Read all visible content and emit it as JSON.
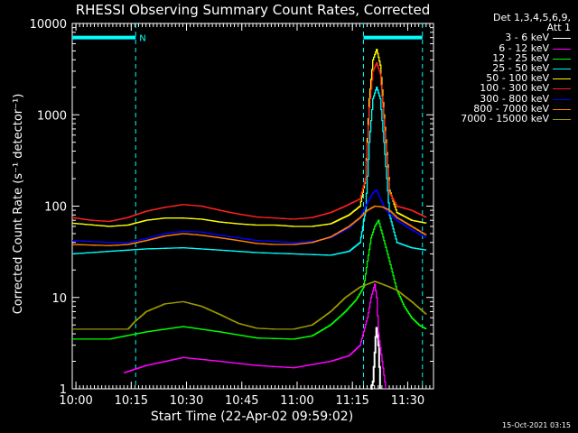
{
  "chart_data": {
    "type": "line",
    "title": "RHESSI Observing Summary Count Rates, Corrected",
    "xlabel": "Start Time (22-Apr-02 09:59:02)",
    "ylabel": "Corrected Count Rate (s⁻¹ detector⁻¹)",
    "y_scale": "log",
    "ylim": [
      1,
      10000
    ],
    "xlim_minutes": [
      0,
      98
    ],
    "y_ticks": [
      "1",
      "10",
      "100",
      "1000",
      "10000"
    ],
    "x_ticks": [
      {
        "label": "10:00",
        "t": 1
      },
      {
        "label": "10:15",
        "t": 16
      },
      {
        "label": "10:30",
        "t": 31
      },
      {
        "label": "10:45",
        "t": 46
      },
      {
        "label": "11:00",
        "t": 61
      },
      {
        "label": "11:15",
        "t": 76
      },
      {
        "label": "11:30",
        "t": 91
      }
    ],
    "legend_header": [
      "Det 1,3,4,5,6,9,",
      "Att 1"
    ],
    "attenuator_bars": [
      {
        "start": 0,
        "end": 17.2,
        "value": 7000,
        "label": "N"
      },
      {
        "start": 79,
        "end": 95,
        "value": 7000,
        "label": ""
      }
    ],
    "vertical_markers": [
      17.2,
      79,
      95
    ],
    "series": [
      {
        "name": "3 - 6 keV",
        "color": "#ffffff",
        "sparse": true,
        "x": [
          81,
          81.5,
          82,
          82.3,
          82.6,
          83,
          83.5
        ],
        "y": [
          1,
          1.2,
          2.5,
          4,
          5,
          3,
          1
        ]
      },
      {
        "name": "6 - 12 keV",
        "color": "#ff00ff",
        "sparse": false,
        "x": [
          14,
          20,
          30,
          40,
          50,
          60,
          70,
          75,
          78,
          80,
          81,
          82,
          82.5,
          83,
          84,
          85
        ],
        "y": [
          1.5,
          1.8,
          2.2,
          2.0,
          1.8,
          1.7,
          2.0,
          2.3,
          3,
          6,
          10,
          14,
          10,
          4,
          2,
          1
        ]
      },
      {
        "name": "12 - 25 keV",
        "color": "#00ff00",
        "sparse": false,
        "x": [
          0,
          10,
          20,
          30,
          40,
          50,
          60,
          65,
          70,
          74,
          77,
          79,
          80,
          81,
          82,
          83,
          84,
          86,
          88,
          90,
          92,
          94,
          96
        ],
        "y": [
          3.5,
          3.5,
          4.2,
          4.8,
          4.2,
          3.6,
          3.5,
          3.8,
          5,
          7,
          9.5,
          13,
          25,
          45,
          60,
          70,
          50,
          25,
          12,
          8,
          6,
          5,
          4.5
        ]
      },
      {
        "name": "25 - 50 keV",
        "color": "#00ffff",
        "sparse": false,
        "x": [
          0,
          10,
          15,
          20,
          30,
          40,
          50,
          60,
          70,
          75,
          78,
          79.5,
          80.5,
          81.5,
          82.5,
          83.5,
          84.5,
          86,
          88,
          92,
          96
        ],
        "y": [
          30,
          32,
          33,
          34,
          35,
          33,
          31,
          30,
          29,
          32,
          40,
          90,
          500,
          1500,
          2000,
          1500,
          500,
          80,
          40,
          35,
          33
        ]
      },
      {
        "name": "50 - 100 keV",
        "color": "#ffff00",
        "sparse": false,
        "x": [
          0,
          10,
          15,
          20,
          25,
          30,
          35,
          40,
          45,
          50,
          55,
          60,
          65,
          70,
          75,
          78,
          79.5,
          80.5,
          81.5,
          82.5,
          83.5,
          84.5,
          86,
          88,
          92,
          96
        ],
        "y": [
          65,
          60,
          62,
          70,
          74,
          74,
          72,
          67,
          64,
          62,
          62,
          60,
          60,
          64,
          80,
          100,
          200,
          1500,
          4000,
          5200,
          3500,
          1000,
          150,
          85,
          70,
          65
        ]
      },
      {
        "name": "100 - 300 keV",
        "color": "#ff2020",
        "sparse": false,
        "x": [
          0,
          5,
          10,
          15,
          20,
          25,
          30,
          35,
          40,
          45,
          50,
          55,
          60,
          65,
          70,
          74,
          78,
          79.5,
          80.5,
          81.5,
          82.5,
          83.5,
          84.5,
          86,
          88,
          92,
          96
        ],
        "y": [
          75,
          70,
          68,
          75,
          88,
          97,
          104,
          100,
          90,
          82,
          76,
          74,
          72,
          75,
          85,
          100,
          120,
          200,
          1200,
          3000,
          3700,
          2800,
          900,
          140,
          100,
          90,
          75
        ]
      },
      {
        "name": "300 - 800 keV",
        "color": "#0000ff",
        "sparse": false,
        "x": [
          0,
          10,
          15,
          20,
          25,
          30,
          35,
          40,
          45,
          50,
          55,
          60,
          65,
          70,
          75,
          78,
          80,
          81.5,
          82.5,
          83.5,
          85,
          88,
          92,
          96
        ],
        "y": [
          42,
          40,
          40,
          44,
          50,
          53,
          52,
          48,
          45,
          42,
          41,
          40,
          41,
          45,
          58,
          75,
          110,
          140,
          150,
          120,
          90,
          70,
          55,
          45
        ]
      },
      {
        "name": "800 - 7000 keV",
        "color": "#ff8000",
        "sparse": false,
        "x": [
          0,
          10,
          15,
          20,
          25,
          30,
          35,
          40,
          45,
          50,
          55,
          60,
          65,
          70,
          75,
          78,
          80,
          82,
          84,
          86,
          88,
          92,
          96
        ],
        "y": [
          38,
          37,
          38,
          42,
          47,
          50,
          48,
          45,
          42,
          39,
          38,
          38,
          40,
          46,
          60,
          75,
          90,
          100,
          98,
          90,
          75,
          60,
          48
        ]
      },
      {
        "name": "7000 - 15000 keV",
        "color": "#999900",
        "sparse": false,
        "x": [
          0,
          10,
          15,
          17,
          20,
          25,
          30,
          35,
          40,
          45,
          50,
          55,
          60,
          65,
          70,
          74,
          78,
          80,
          82,
          84,
          86,
          88,
          92,
          96
        ],
        "y": [
          4.5,
          4.5,
          4.5,
          5.5,
          7,
          8.5,
          9,
          8,
          6.5,
          5.2,
          4.6,
          4.5,
          4.5,
          5,
          7,
          10,
          13,
          14,
          15,
          14,
          13,
          12,
          9,
          6.5
        ]
      }
    ]
  },
  "timestamp": "15-Oct-2021 03:15"
}
